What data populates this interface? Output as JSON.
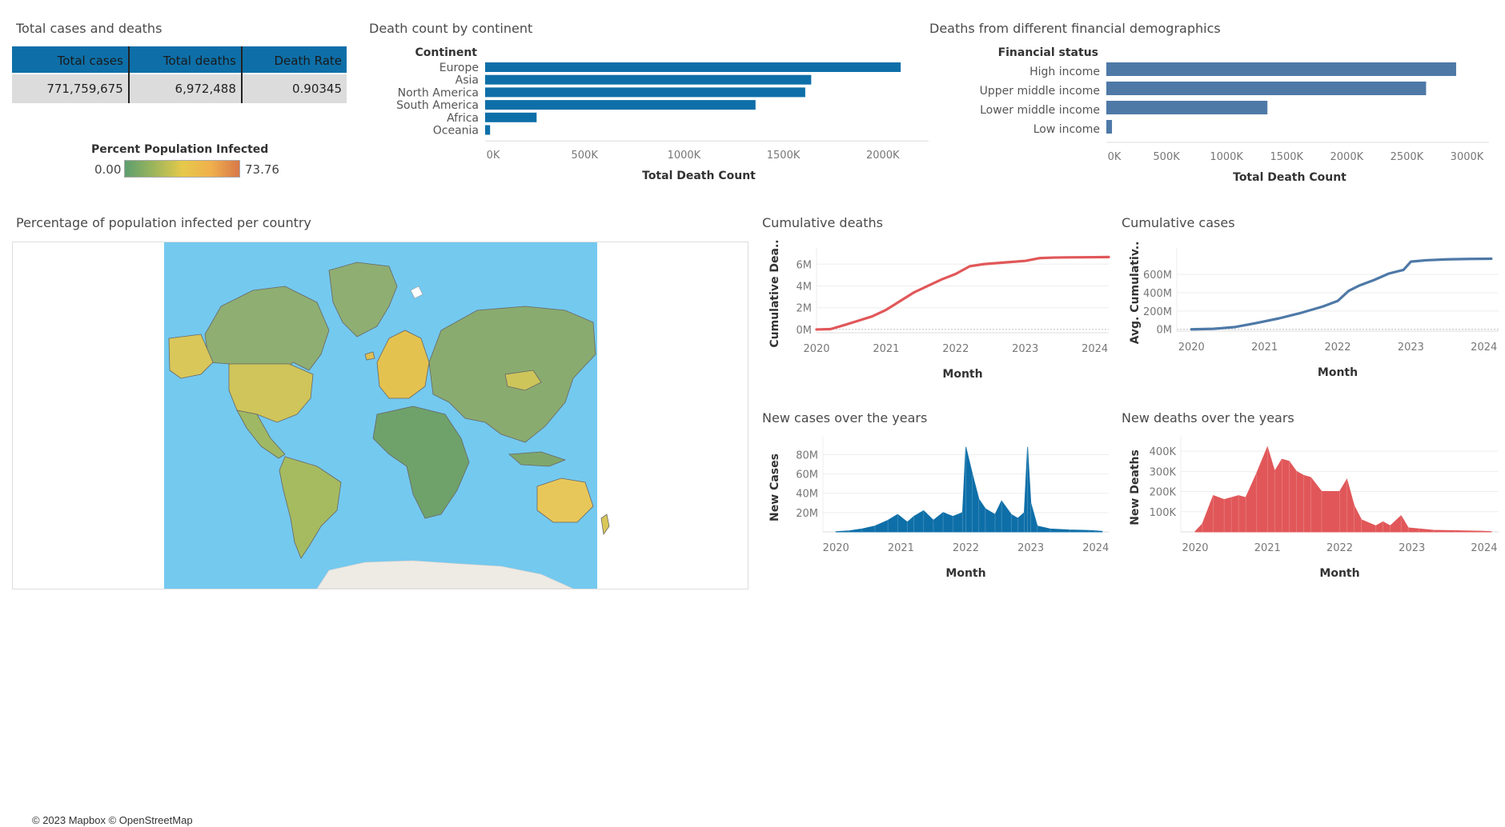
{
  "titles": {
    "totals": "Total cases and deaths",
    "continent": "Death count by continent",
    "financial": "Deaths from different financial demographics",
    "map": "Percentage of population infected per country",
    "cum_deaths": "Cumulative deaths",
    "cum_cases": "Cumulative cases",
    "new_cases": "New cases over the years",
    "new_deaths": "New deaths over the years"
  },
  "kpi": {
    "headers": [
      "Total cases",
      "Total deaths",
      "Death Rate"
    ],
    "values": [
      "771,759,675",
      "6,972,488",
      "0.90345"
    ]
  },
  "map_legend": {
    "title": "Percent Population Infected",
    "min": "0.00",
    "max": "73.76",
    "colors": [
      "#5d9e6f",
      "#9cb55b",
      "#e5c94b",
      "#f0b04c",
      "#d8784a"
    ]
  },
  "map_credit": "© 2023 Mapbox © OpenStreetMap",
  "chart_data": [
    {
      "id": "continent",
      "type": "bar",
      "orientation": "horizontal",
      "title": "Death count by continent",
      "category_header": "Continent",
      "categories": [
        "Europe",
        "Asia",
        "North America",
        "South America",
        "Africa",
        "Oceania"
      ],
      "values": [
        2090000,
        1640000,
        1610000,
        1360000,
        259000,
        25000
      ],
      "xlabel": "Total Death Count",
      "xlim": [
        0,
        2150000
      ],
      "ticks": [
        0,
        500000,
        1000000,
        1500000,
        2000000
      ],
      "tick_labels": [
        "0K",
        "500K",
        "1000K",
        "1500K",
        "2000K"
      ],
      "color": "#0e6fa8"
    },
    {
      "id": "financial",
      "type": "bar",
      "orientation": "horizontal",
      "title": "Deaths from different financial demographics",
      "category_header": "Financial status",
      "categories": [
        "High income",
        "Upper middle income",
        "Lower middle income",
        "Low income"
      ],
      "values": [
        2910000,
        2660000,
        1340000,
        47000
      ],
      "xlabel": "Total Death Count",
      "xlim": [
        0,
        3050000
      ],
      "ticks": [
        0,
        500000,
        1000000,
        1500000,
        2000000,
        2500000,
        3000000
      ],
      "tick_labels": [
        "0K",
        "500K",
        "1000K",
        "1500K",
        "2000K",
        "2500K",
        "3000K"
      ],
      "color": "#4e79a7"
    },
    {
      "id": "cum_deaths",
      "type": "line",
      "title": "Cumulative deaths",
      "xlabel": "Month",
      "ylabel": "Cumulative Dea..",
      "xlim": [
        2020,
        2024.2
      ],
      "ylim": [
        -300000,
        6900000
      ],
      "yticks": [
        0,
        2000000,
        4000000,
        6000000
      ],
      "ytick_labels": [
        "0M",
        "2M",
        "4M",
        "6M"
      ],
      "xticks": [
        2020,
        2021,
        2022,
        2023,
        2024
      ],
      "xtick_labels": [
        "2020",
        "2021",
        "2022",
        "2023",
        "2024"
      ],
      "x": [
        2020.0,
        2020.2,
        2020.4,
        2020.6,
        2020.8,
        2021.0,
        2021.2,
        2021.4,
        2021.6,
        2021.8,
        2022.0,
        2022.2,
        2022.4,
        2022.6,
        2022.8,
        2023.0,
        2023.2,
        2023.4,
        2023.6,
        2023.8,
        2024.0,
        2024.2
      ],
      "y": [
        0,
        30000,
        400000,
        800000,
        1200000,
        1800000,
        2600000,
        3400000,
        4000000,
        4600000,
        5100000,
        5800000,
        6000000,
        6100000,
        6200000,
        6300000,
        6550000,
        6600000,
        6620000,
        6630000,
        6640000,
        6650000
      ],
      "color": "#e15759"
    },
    {
      "id": "cum_cases",
      "type": "line",
      "title": "Cumulative cases",
      "xlabel": "Month",
      "ylabel": "Avg. Cumulativ..",
      "xlim": [
        2019.8,
        2024.2
      ],
      "ylim": [
        -20000000,
        820000000
      ],
      "yticks": [
        0,
        200000000,
        400000000,
        600000000
      ],
      "ytick_labels": [
        "0M",
        "200M",
        "400M",
        "600M"
      ],
      "xticks": [
        2020,
        2021,
        2022,
        2023,
        2024
      ],
      "xtick_labels": [
        "2020",
        "2021",
        "2022",
        "2023",
        "2024"
      ],
      "x": [
        2020.0,
        2020.3,
        2020.6,
        2020.9,
        2021.2,
        2021.5,
        2021.8,
        2022.0,
        2022.15,
        2022.3,
        2022.5,
        2022.7,
        2022.9,
        2023.0,
        2023.2,
        2023.5,
        2023.8,
        2024.1
      ],
      "y": [
        0,
        5000000,
        25000000,
        70000000,
        120000000,
        180000000,
        250000000,
        310000000,
        420000000,
        480000000,
        540000000,
        610000000,
        650000000,
        740000000,
        755000000,
        765000000,
        770000000,
        772000000
      ],
      "color": "#4e79a7"
    },
    {
      "id": "new_cases",
      "type": "area",
      "title": "New cases over the years",
      "xlabel": "Month",
      "ylabel": "New Cases",
      "xlim": [
        2019.8,
        2024.2
      ],
      "ylim": [
        0,
        92000000
      ],
      "yticks": [
        20000000,
        40000000,
        60000000,
        80000000
      ],
      "ytick_labels": [
        "20M",
        "40M",
        "60M",
        "80M"
      ],
      "xticks": [
        2020,
        2021,
        2022,
        2023,
        2024
      ],
      "xtick_labels": [
        "2020",
        "2021",
        "2022",
        "2023",
        "2024"
      ],
      "x": [
        2020.0,
        2020.2,
        2020.4,
        2020.6,
        2020.8,
        2020.95,
        2021.1,
        2021.2,
        2021.35,
        2021.5,
        2021.65,
        2021.8,
        2021.95,
        2022.0,
        2022.1,
        2022.2,
        2022.3,
        2022.45,
        2022.55,
        2022.7,
        2022.8,
        2022.9,
        2022.95,
        2023.0,
        2023.1,
        2023.3,
        2023.6,
        2023.9,
        2024.0,
        2024.1
      ],
      "y": [
        200000,
        1000000,
        3000000,
        6000000,
        12000000,
        18000000,
        10000000,
        16000000,
        22000000,
        12000000,
        20000000,
        16000000,
        20000000,
        88000000,
        60000000,
        34000000,
        24000000,
        18000000,
        32000000,
        18000000,
        14000000,
        20000000,
        88000000,
        30000000,
        6000000,
        3000000,
        2000000,
        1500000,
        1000000,
        500000
      ],
      "color": "#0e6fa8"
    },
    {
      "id": "new_deaths",
      "type": "area",
      "title": "New deaths over the years",
      "xlabel": "Month",
      "ylabel": "New Deaths",
      "xlim": [
        2019.8,
        2024.2
      ],
      "ylim": [
        0,
        440000
      ],
      "yticks": [
        100000,
        200000,
        300000,
        400000
      ],
      "ytick_labels": [
        "100K",
        "200K",
        "300K",
        "400K"
      ],
      "xticks": [
        2020,
        2021,
        2022,
        2023,
        2024
      ],
      "xtick_labels": [
        "2020",
        "2021",
        "2022",
        "2023",
        "2024"
      ],
      "x": [
        2020.0,
        2020.1,
        2020.25,
        2020.4,
        2020.5,
        2020.6,
        2020.7,
        2020.85,
        2021.0,
        2021.1,
        2021.2,
        2021.3,
        2021.4,
        2021.5,
        2021.6,
        2021.75,
        2022.0,
        2022.1,
        2022.2,
        2022.3,
        2022.5,
        2022.6,
        2022.7,
        2022.85,
        2022.95,
        2023.1,
        2023.3,
        2023.6,
        2024.0,
        2024.1
      ],
      "y": [
        2000,
        40000,
        180000,
        160000,
        170000,
        180000,
        170000,
        290000,
        420000,
        300000,
        360000,
        350000,
        300000,
        280000,
        270000,
        200000,
        200000,
        260000,
        130000,
        60000,
        30000,
        50000,
        30000,
        80000,
        20000,
        15000,
        8000,
        6000,
        3000,
        1000
      ],
      "color": "#e15759"
    }
  ]
}
